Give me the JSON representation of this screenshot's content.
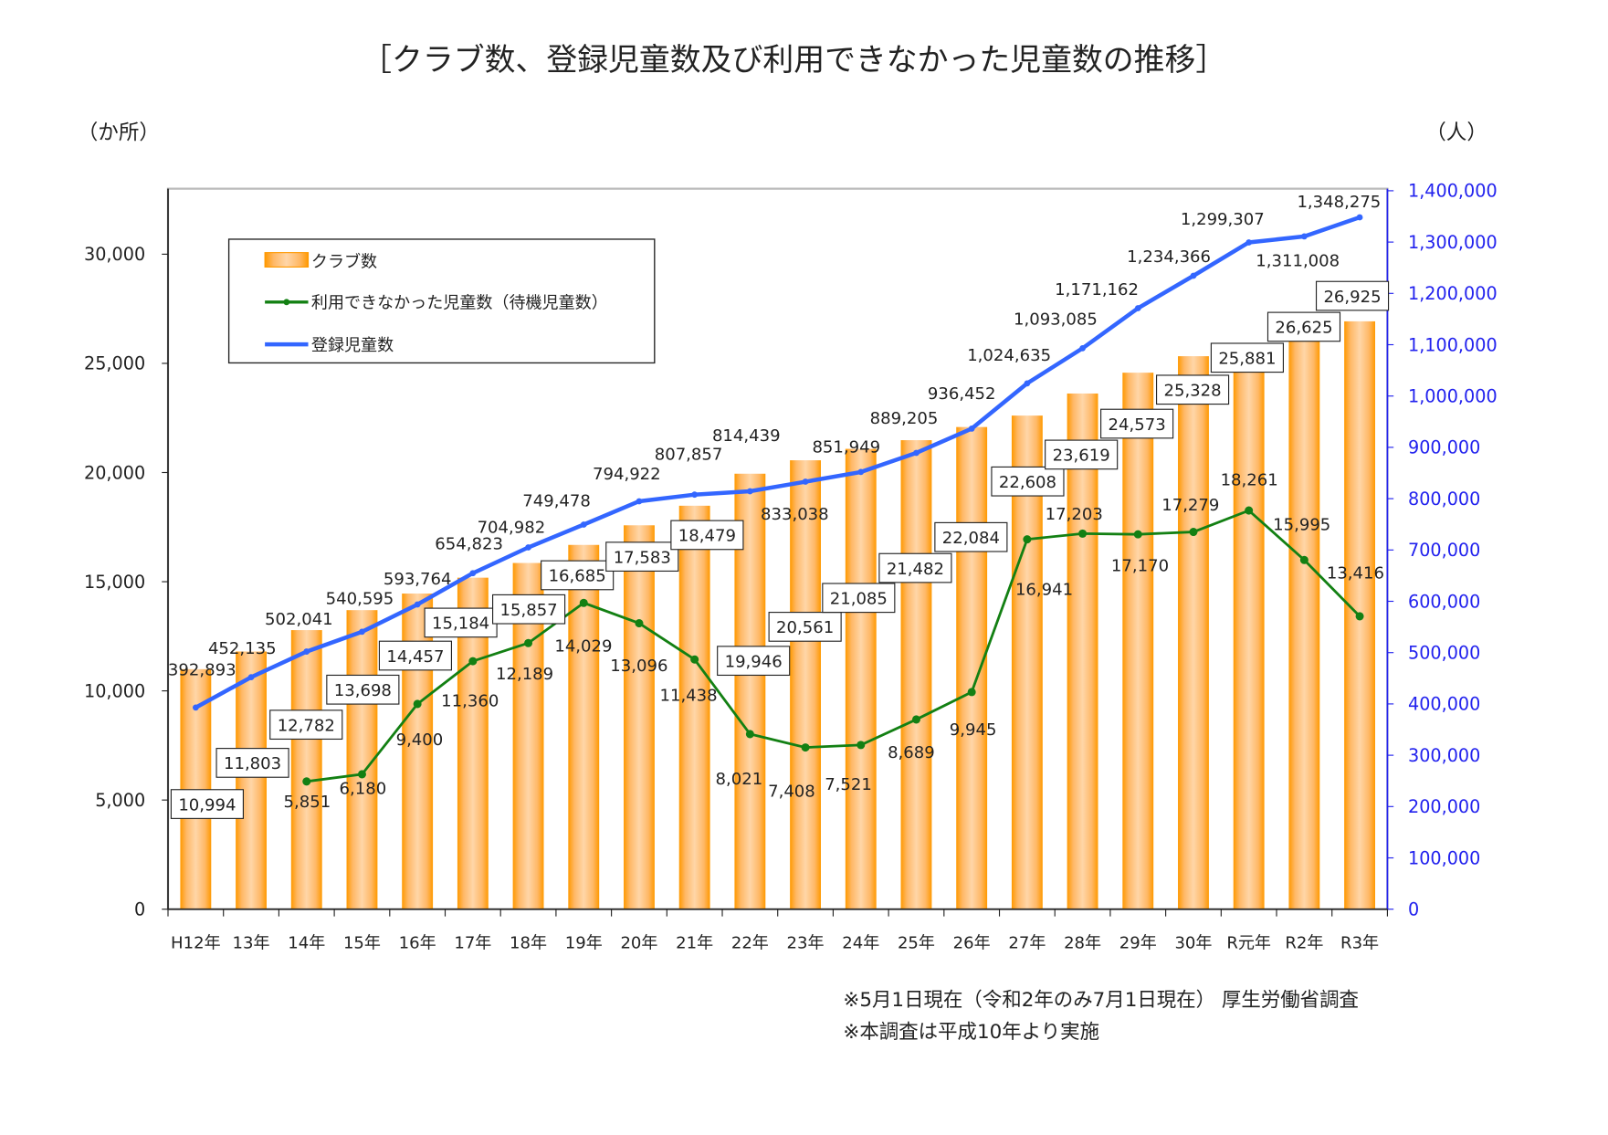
{
  "chart_data": {
    "type": "bar+line",
    "title": "［クラブ数、登録児童数及び利用できなかった児童数の推移］",
    "left_axis_unit": "（か所）",
    "right_axis_unit": "（人）",
    "categories": [
      "H12年",
      "13年",
      "14年",
      "15年",
      "16年",
      "17年",
      "18年",
      "19年",
      "20年",
      "21年",
      "22年",
      "23年",
      "24年",
      "25年",
      "26年",
      "27年",
      "28年",
      "29年",
      "30年",
      "R元年",
      "R2年",
      "R3年"
    ],
    "left_ylim": [
      0,
      33000
    ],
    "left_ticks": [
      0,
      5000,
      10000,
      15000,
      20000,
      25000,
      30000
    ],
    "left_tick_labels": [
      "0",
      "5,000",
      "10,000",
      "15,000",
      "20,000",
      "25,000",
      "30,000"
    ],
    "right_ylim": [
      0,
      1400000
    ],
    "right_ticks": [
      0,
      100000,
      200000,
      300000,
      400000,
      500000,
      600000,
      700000,
      800000,
      900000,
      1000000,
      1100000,
      1200000,
      1300000,
      1400000
    ],
    "right_tick_labels": [
      "0",
      "100,000",
      "200,000",
      "300,000",
      "400,000",
      "500,000",
      "600,000",
      "700,000",
      "800,000",
      "900,000",
      "1,000,000",
      "1,100,000",
      "1,200,000",
      "1,300,000",
      "1,400,000"
    ],
    "legend_placement": "top-left",
    "series": [
      {
        "name": "クラブ数",
        "type": "bar",
        "axis": "left",
        "color": "#ff9900",
        "values": [
          10994,
          11803,
          12782,
          13698,
          14457,
          15184,
          15857,
          16685,
          17583,
          18479,
          19946,
          20561,
          21085,
          21482,
          22084,
          22608,
          23619,
          24573,
          25328,
          25881,
          26625,
          26925
        ],
        "labels": [
          "10,994",
          "11,803",
          "12,782",
          "13,698",
          "14,457",
          "15,184",
          "15,857",
          "16,685",
          "17,583",
          "18,479",
          "19,946",
          "20,561",
          "21,085",
          "21,482",
          "22,084",
          "22,608",
          "23,619",
          "24,573",
          "25,328",
          "25,881",
          "26,625",
          "26,925"
        ]
      },
      {
        "name": "利用できなかった児童数（待機児童数）",
        "type": "line",
        "axis": "left",
        "color": "#138013",
        "values": [
          null,
          null,
          5851,
          6180,
          9400,
          11360,
          12189,
          14029,
          13096,
          11438,
          8021,
          7408,
          7521,
          8689,
          9945,
          16941,
          17203,
          17170,
          17279,
          18261,
          15995,
          13416
        ],
        "labels": [
          "",
          "",
          "5,851",
          "6,180",
          "9,400",
          "11,360",
          "12,189",
          "14,029",
          "13,096",
          "11,438",
          "8,021",
          "7,408",
          "7,521",
          "8,689",
          "9,945",
          "16,941",
          "17,203",
          "17,170",
          "17,279",
          "18,261",
          "15,995",
          "13,416"
        ]
      },
      {
        "name": "登録児童数",
        "type": "line",
        "axis": "right",
        "color": "#3366ff",
        "values": [
          392893,
          452135,
          502041,
          540595,
          593764,
          654823,
          704982,
          749478,
          794922,
          807857,
          814439,
          833038,
          851949,
          889205,
          936452,
          1024635,
          1093085,
          1171162,
          1234366,
          1299307,
          1311008,
          1348275
        ],
        "labels": [
          "392,893",
          "452,135",
          "502,041",
          "540,595",
          "593,764",
          "654,823",
          "704,982",
          "749,478",
          "794,922",
          "807,857",
          "814,439",
          "833,038",
          "851,949",
          "889,205",
          "936,452",
          "1,024,635",
          "1,093,085",
          "1,171,162",
          "1,234,366",
          "1,299,307",
          "1,311,008",
          "1,348,275"
        ]
      }
    ],
    "notes": [
      "※5月1日現在（令和2年のみ7月1日現在） 厚生労働省調査",
      "※本調査は平成10年より実施"
    ]
  }
}
